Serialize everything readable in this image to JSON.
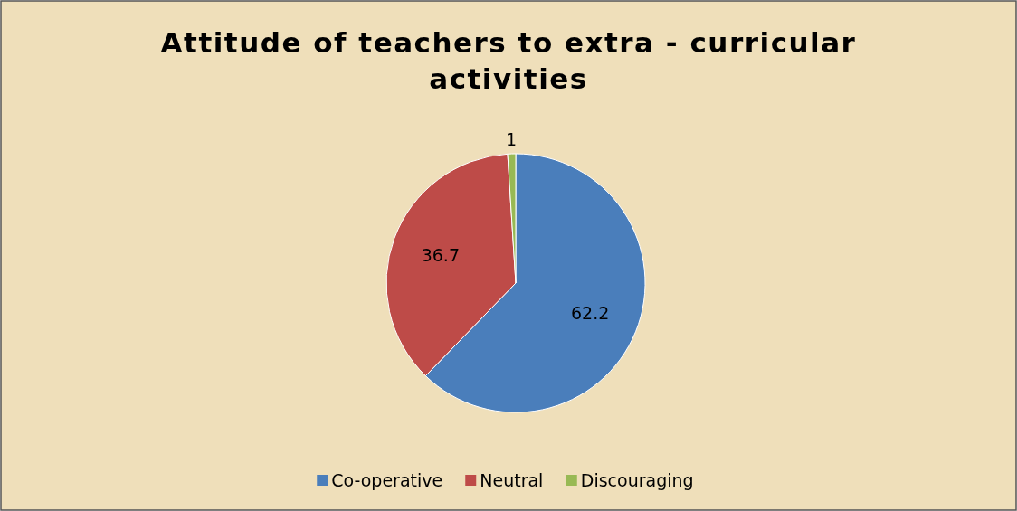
{
  "chart_data": {
    "type": "pie",
    "title": "Attitude of teachers to extra - curricular activities",
    "categories": [
      "Co-operative",
      "Neutral",
      "Discouraging"
    ],
    "values": [
      62.2,
      36.7,
      1
    ],
    "colors": [
      "#4a7ebb",
      "#be4b48",
      "#98b954"
    ],
    "data_labels": true,
    "legend": "bottom"
  }
}
